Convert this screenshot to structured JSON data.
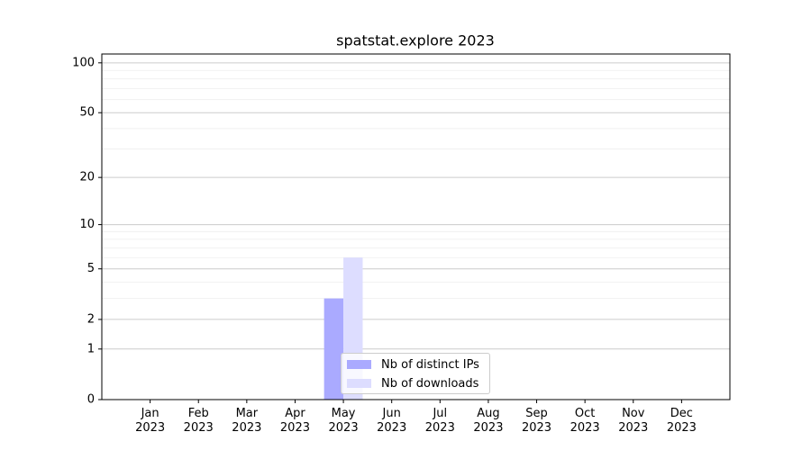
{
  "chart_data": {
    "type": "bar",
    "title": "spatstat.explore 2023",
    "categories": [
      "Jan\n2023",
      "Feb\n2023",
      "Mar\n2023",
      "Apr\n2023",
      "May\n2023",
      "Jun\n2023",
      "Jul\n2023",
      "Aug\n2023",
      "Sep\n2023",
      "Oct\n2023",
      "Nov\n2023",
      "Dec\n2023"
    ],
    "series": [
      {
        "name": "Nb of distinct IPs",
        "color": "#aaaaff",
        "values": [
          0,
          0,
          0,
          0,
          3,
          0,
          0,
          0,
          0,
          0,
          0,
          0
        ]
      },
      {
        "name": "Nb of downloads",
        "color": "#ddddff",
        "values": [
          0,
          0,
          0,
          0,
          6,
          0,
          0,
          0,
          0,
          0,
          0,
          0
        ]
      }
    ],
    "yscale": "log1p",
    "ylim": [
      0,
      113
    ],
    "yticks": [
      0,
      1,
      2,
      5,
      10,
      20,
      50,
      100
    ],
    "minor_yticks": [
      3,
      4,
      6,
      7,
      8,
      9,
      30,
      40,
      60,
      70,
      80,
      90
    ],
    "grid": true,
    "legend": "lower center"
  }
}
